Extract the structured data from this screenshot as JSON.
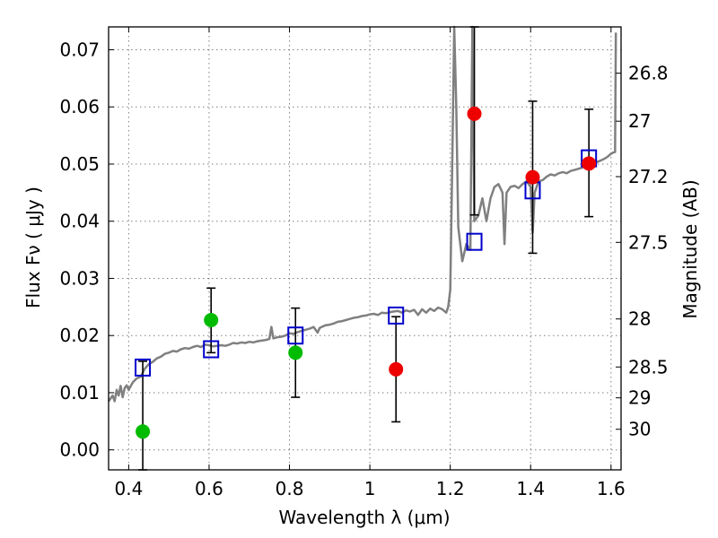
{
  "chart_data": {
    "type": "scatter",
    "xlabel": "Wavelength  λ (μm)",
    "ylabel": "Flux  Fν  ( μJy )",
    "ylabel_right": "Magnitude (AB)",
    "xlim": [
      0.35,
      1.625
    ],
    "ylim": [
      -0.0035,
      0.074
    ],
    "grid": true,
    "x_ticks": [
      {
        "value": 0.4,
        "label": "0.4"
      },
      {
        "value": 0.6,
        "label": "0.6"
      },
      {
        "value": 0.8,
        "label": "0.8"
      },
      {
        "value": 1.0,
        "label": "1"
      },
      {
        "value": 1.2,
        "label": "1.2"
      },
      {
        "value": 1.4,
        "label": "1.4"
      },
      {
        "value": 1.6,
        "label": "1.6"
      }
    ],
    "y_ticks": [
      {
        "value": 0.0,
        "label": "0.00"
      },
      {
        "value": 0.01,
        "label": "0.01"
      },
      {
        "value": 0.02,
        "label": "0.02"
      },
      {
        "value": 0.03,
        "label": "0.03"
      },
      {
        "value": 0.04,
        "label": "0.04"
      },
      {
        "value": 0.05,
        "label": "0.05"
      },
      {
        "value": 0.06,
        "label": "0.06"
      },
      {
        "value": 0.07,
        "label": "0.07"
      }
    ],
    "mag_ticks": [
      {
        "flux": 0.0659,
        "label": "26.8"
      },
      {
        "flux": 0.0575,
        "label": "27"
      },
      {
        "flux": 0.0478,
        "label": "27.2"
      },
      {
        "flux": 0.0363,
        "label": "27.5"
      },
      {
        "flux": 0.0229,
        "label": "28"
      },
      {
        "flux": 0.0145,
        "label": "28.5"
      },
      {
        "flux": 0.0091,
        "label": "29"
      },
      {
        "flux": 0.0036,
        "label": "30"
      }
    ],
    "series": [
      {
        "kind": "model_spectrum",
        "color": "#808080",
        "points": [
          [
            0.35,
            0.0085
          ],
          [
            0.36,
            0.0095
          ],
          [
            0.365,
            0.0085
          ],
          [
            0.37,
            0.0105
          ],
          [
            0.375,
            0.0095
          ],
          [
            0.38,
            0.0112
          ],
          [
            0.385,
            0.0092
          ],
          [
            0.39,
            0.0108
          ],
          [
            0.395,
            0.0113
          ],
          [
            0.4,
            0.0105
          ],
          [
            0.41,
            0.0118
          ],
          [
            0.42,
            0.0125
          ],
          [
            0.43,
            0.0128
          ],
          [
            0.44,
            0.0142
          ],
          [
            0.45,
            0.015
          ],
          [
            0.46,
            0.0154
          ],
          [
            0.47,
            0.016
          ],
          [
            0.48,
            0.0163
          ],
          [
            0.49,
            0.0168
          ],
          [
            0.5,
            0.017
          ],
          [
            0.51,
            0.0173
          ],
          [
            0.52,
            0.0172
          ],
          [
            0.53,
            0.0176
          ],
          [
            0.54,
            0.0178
          ],
          [
            0.55,
            0.0177
          ],
          [
            0.56,
            0.018
          ],
          [
            0.57,
            0.0182
          ],
          [
            0.58,
            0.018
          ],
          [
            0.59,
            0.0184
          ],
          [
            0.6,
            0.0183
          ],
          [
            0.61,
            0.0181
          ],
          [
            0.62,
            0.0182
          ],
          [
            0.63,
            0.0183
          ],
          [
            0.64,
            0.0182
          ],
          [
            0.65,
            0.0184
          ],
          [
            0.66,
            0.0187
          ],
          [
            0.67,
            0.0186
          ],
          [
            0.68,
            0.0188
          ],
          [
            0.69,
            0.0187
          ],
          [
            0.7,
            0.0189
          ],
          [
            0.71,
            0.0188
          ],
          [
            0.72,
            0.019
          ],
          [
            0.73,
            0.0191
          ],
          [
            0.74,
            0.0192
          ],
          [
            0.75,
            0.0194
          ],
          [
            0.755,
            0.0215
          ],
          [
            0.76,
            0.0195
          ],
          [
            0.77,
            0.0197
          ],
          [
            0.78,
            0.0198
          ],
          [
            0.79,
            0.02
          ],
          [
            0.8,
            0.0204
          ],
          [
            0.81,
            0.0203
          ],
          [
            0.82,
            0.0206
          ],
          [
            0.83,
            0.0208
          ],
          [
            0.84,
            0.021
          ],
          [
            0.85,
            0.0212
          ],
          [
            0.86,
            0.0215
          ],
          [
            0.87,
            0.0205
          ],
          [
            0.875,
            0.0213
          ],
          [
            0.88,
            0.0215
          ],
          [
            0.89,
            0.0218
          ],
          [
            0.9,
            0.0219
          ],
          [
            0.91,
            0.0221
          ],
          [
            0.92,
            0.0224
          ],
          [
            0.93,
            0.0225
          ],
          [
            0.94,
            0.0227
          ],
          [
            0.95,
            0.0229
          ],
          [
            0.96,
            0.0231
          ],
          [
            0.97,
            0.0232
          ],
          [
            0.98,
            0.0234
          ],
          [
            0.99,
            0.0235
          ],
          [
            1.0,
            0.0237
          ],
          [
            1.01,
            0.0238
          ],
          [
            1.02,
            0.0236
          ],
          [
            1.03,
            0.024
          ],
          [
            1.04,
            0.0239
          ],
          [
            1.05,
            0.0241
          ],
          [
            1.06,
            0.0242
          ],
          [
            1.07,
            0.0243
          ],
          [
            1.08,
            0.024
          ],
          [
            1.09,
            0.0244
          ],
          [
            1.1,
            0.0242
          ],
          [
            1.11,
            0.0245
          ],
          [
            1.12,
            0.0236
          ],
          [
            1.13,
            0.0246
          ],
          [
            1.14,
            0.024
          ],
          [
            1.15,
            0.0247
          ],
          [
            1.16,
            0.0243
          ],
          [
            1.17,
            0.0249
          ],
          [
            1.18,
            0.0246
          ],
          [
            1.19,
            0.024
          ],
          [
            1.195,
            0.025
          ],
          [
            1.2,
            0.028
          ],
          [
            1.205,
            0.05
          ],
          [
            1.21,
            0.074
          ],
          [
            1.215,
            0.06
          ],
          [
            1.22,
            0.039
          ],
          [
            1.23,
            0.033
          ],
          [
            1.24,
            0.036
          ],
          [
            1.25,
            0.035
          ],
          [
            1.255,
            0.074
          ],
          [
            1.26,
            0.04
          ],
          [
            1.27,
            0.041
          ],
          [
            1.28,
            0.044
          ],
          [
            1.29,
            0.04
          ],
          [
            1.3,
            0.044
          ],
          [
            1.31,
            0.046
          ],
          [
            1.32,
            0.0465
          ],
          [
            1.33,
            0.045
          ],
          [
            1.335,
            0.036
          ],
          [
            1.34,
            0.045
          ],
          [
            1.35,
            0.046
          ],
          [
            1.36,
            0.0462
          ],
          [
            1.37,
            0.0458
          ],
          [
            1.38,
            0.0465
          ],
          [
            1.39,
            0.047
          ],
          [
            1.4,
            0.046
          ],
          [
            1.405,
            0.038
          ],
          [
            1.41,
            0.045
          ],
          [
            1.42,
            0.047
          ],
          [
            1.43,
            0.0472
          ],
          [
            1.44,
            0.0478
          ],
          [
            1.45,
            0.0482
          ],
          [
            1.46,
            0.048
          ],
          [
            1.47,
            0.0484
          ],
          [
            1.48,
            0.0486
          ],
          [
            1.49,
            0.0484
          ],
          [
            1.5,
            0.0488
          ],
          [
            1.51,
            0.049
          ],
          [
            1.52,
            0.0492
          ],
          [
            1.53,
            0.0494
          ],
          [
            1.54,
            0.0496
          ],
          [
            1.55,
            0.0499
          ],
          [
            1.56,
            0.0502
          ],
          [
            1.57,
            0.0505
          ],
          [
            1.58,
            0.0508
          ],
          [
            1.59,
            0.0512
          ],
          [
            1.6,
            0.0518
          ],
          [
            1.605,
            0.052
          ],
          [
            1.61,
            0.0521
          ],
          [
            1.612,
            0.073
          ]
        ]
      },
      {
        "kind": "model_photometry",
        "marker": "open-square",
        "color": "#0000cc",
        "points": [
          [
            0.435,
            0.0144
          ],
          [
            0.605,
            0.0176
          ],
          [
            0.815,
            0.02
          ],
          [
            1.065,
            0.0235
          ],
          [
            1.26,
            0.0364
          ],
          [
            1.405,
            0.0454
          ],
          [
            1.545,
            0.051
          ]
        ]
      },
      {
        "kind": "observed",
        "marker": "filled-circle",
        "points": [
          {
            "x": 0.435,
            "y": 0.0032,
            "color": "#00bb00",
            "err_low": -0.0035,
            "err_high": 0.0155
          },
          {
            "x": 0.605,
            "y": 0.0227,
            "color": "#00bb00",
            "err_low": 0.017,
            "err_high": 0.0283
          },
          {
            "x": 0.815,
            "y": 0.017,
            "color": "#00bb00",
            "err_low": 0.0092,
            "err_high": 0.0248
          },
          {
            "x": 1.065,
            "y": 0.0141,
            "color": "#ee0000",
            "err_low": 0.0049,
            "err_high": 0.0233
          },
          {
            "x": 1.26,
            "y": 0.0588,
            "color": "#ee0000",
            "err_low": 0.0411,
            "err_high": 0.074
          },
          {
            "x": 1.405,
            "y": 0.0477,
            "color": "#ee0000",
            "err_low": 0.0344,
            "err_high": 0.061
          },
          {
            "x": 1.545,
            "y": 0.0501,
            "color": "#ee0000",
            "err_low": 0.0408,
            "err_high": 0.0596
          }
        ]
      }
    ]
  }
}
